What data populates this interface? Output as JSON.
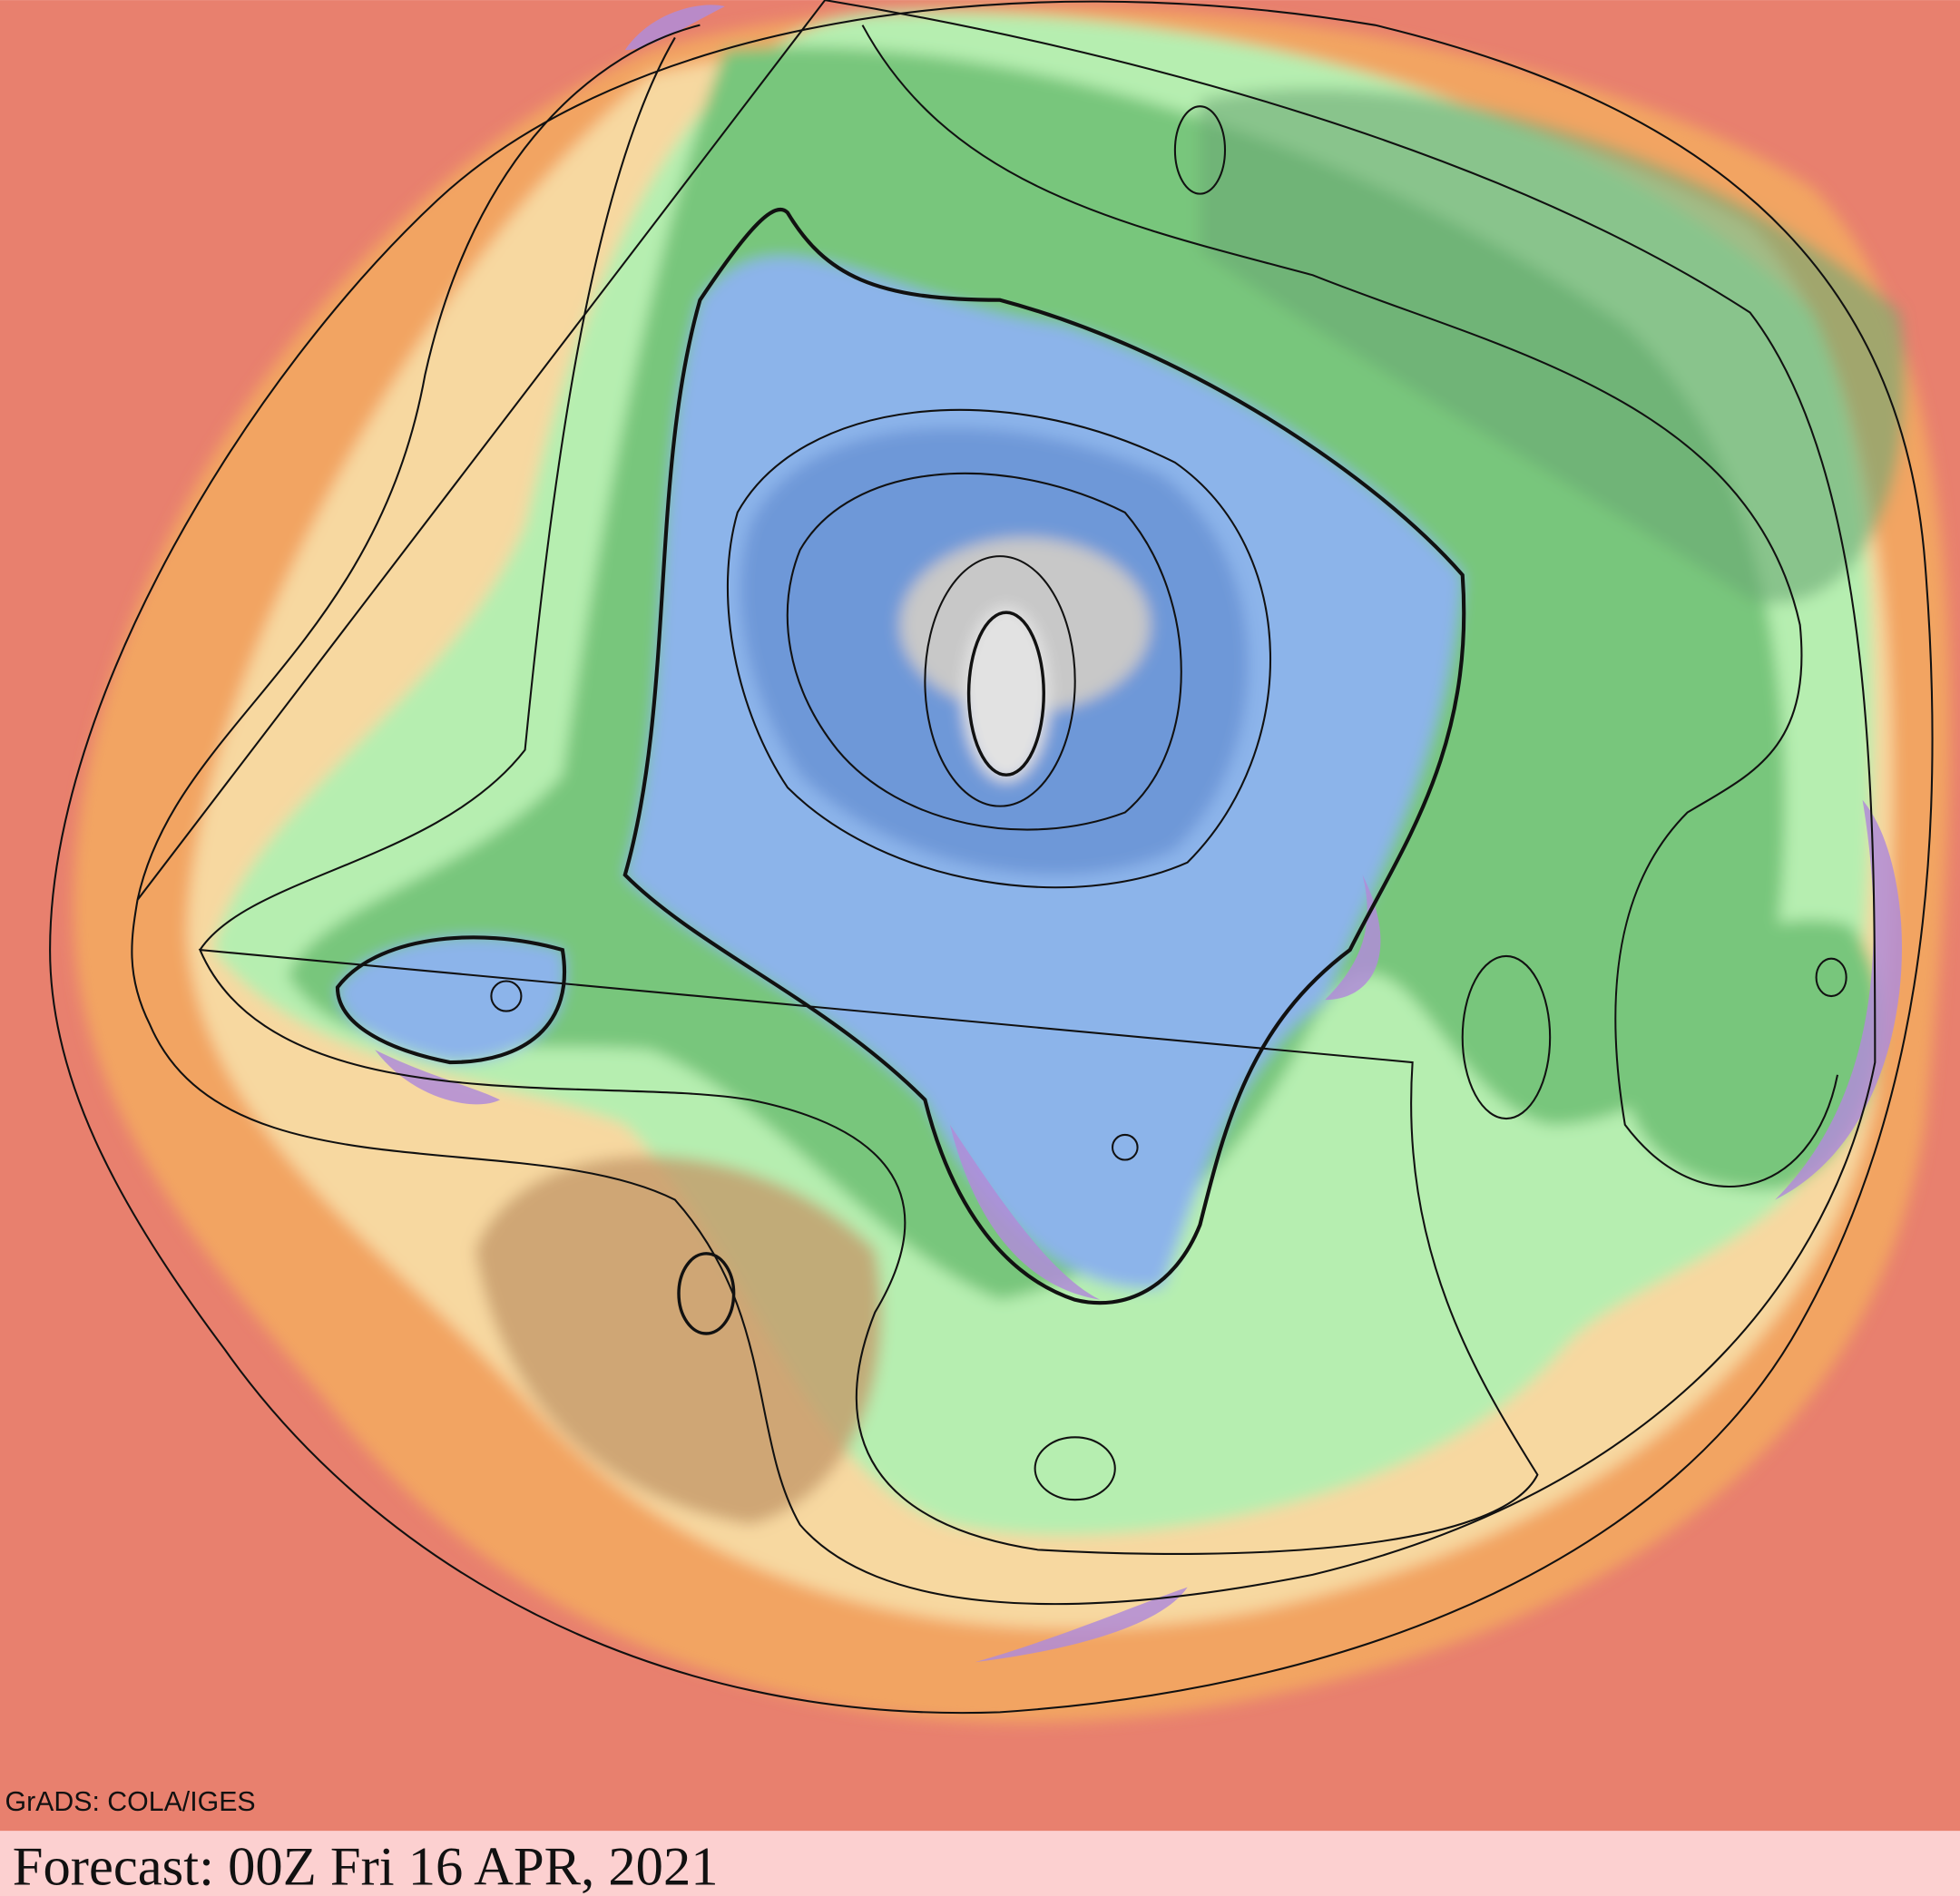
{
  "map": {
    "credit": "GrADS: COLA/IGES"
  },
  "footer": {
    "forecast": "Forecast: 00Z Fri 16 APR, 2021"
  }
}
